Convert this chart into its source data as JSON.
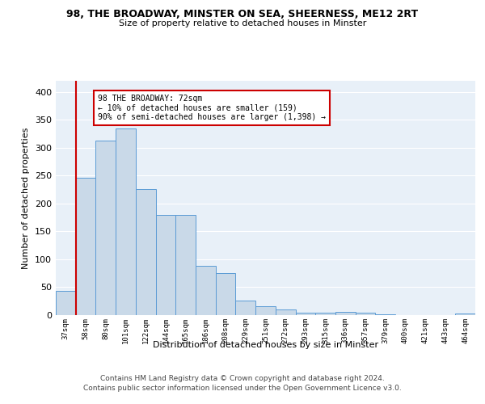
{
  "title1": "98, THE BROADWAY, MINSTER ON SEA, SHEERNESS, ME12 2RT",
  "title2": "Size of property relative to detached houses in Minster",
  "xlabel": "Distribution of detached houses by size in Minster",
  "ylabel": "Number of detached properties",
  "bins": [
    "37sqm",
    "58sqm",
    "80sqm",
    "101sqm",
    "122sqm",
    "144sqm",
    "165sqm",
    "186sqm",
    "208sqm",
    "229sqm",
    "251sqm",
    "272sqm",
    "293sqm",
    "315sqm",
    "336sqm",
    "357sqm",
    "379sqm",
    "400sqm",
    "421sqm",
    "443sqm",
    "464sqm"
  ],
  "values": [
    44,
    246,
    313,
    335,
    226,
    180,
    180,
    89,
    75,
    26,
    16,
    10,
    5,
    5,
    6,
    5,
    2,
    0,
    0,
    0,
    3
  ],
  "bar_color": "#c9d9e8",
  "bar_edge_color": "#5b9bd5",
  "vline_color": "#cc0000",
  "vline_xindex": 1,
  "annotation_text": "98 THE BROADWAY: 72sqm\n← 10% of detached houses are smaller (159)\n90% of semi-detached houses are larger (1,398) →",
  "annotation_box_color": "#ffffff",
  "annotation_box_edge_color": "#cc0000",
  "footer1": "Contains HM Land Registry data © Crown copyright and database right 2024.",
  "footer2": "Contains public sector information licensed under the Open Government Licence v3.0.",
  "ylim": [
    0,
    420
  ],
  "yticks": [
    0,
    50,
    100,
    150,
    200,
    250,
    300,
    350,
    400
  ],
  "plot_bg_color": "#e8f0f8"
}
